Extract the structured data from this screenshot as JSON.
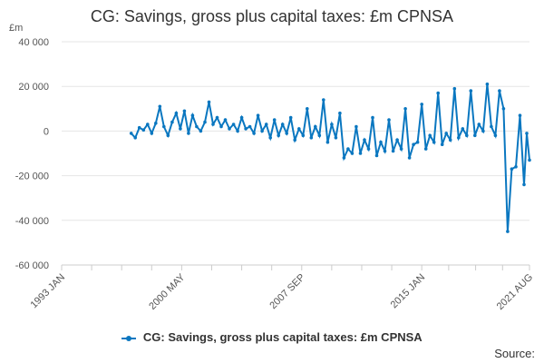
{
  "chart_data": {
    "type": "line",
    "title": "CG: Savings, gross plus capital taxes: £m CPNSA",
    "ylabel": "£m",
    "ylim": [
      -60000,
      40000
    ],
    "yticks": [
      40000,
      20000,
      0,
      -20000,
      -40000,
      -60000
    ],
    "ytick_labels": [
      "40 000",
      "20 000",
      "0",
      "-20 000",
      "-40 000",
      "-60 000"
    ],
    "xlim": [
      "1993-01",
      "2021-08"
    ],
    "xtick_labels": [
      {
        "label": "1993 JAN",
        "date": "1993-01"
      },
      {
        "label": "2000 MAY",
        "date": "2000-05"
      },
      {
        "label": "2007 SEP",
        "date": "2007-09"
      },
      {
        "label": "2015 JAN",
        "date": "2015-01"
      },
      {
        "label": "2021 AUG",
        "date": "2021-08"
      }
    ],
    "grid": "horizontal",
    "legend": "bottom",
    "color": "#0a77c0",
    "series": [
      {
        "name": "CG: Savings, gross plus capital taxes: £m CPNSA",
        "points": [
          [
            "1997-04",
            -1000
          ],
          [
            "1997-07",
            -3000
          ],
          [
            "1997-10",
            1500
          ],
          [
            "1998-01",
            500
          ],
          [
            "1998-04",
            3000
          ],
          [
            "1998-07",
            -1000
          ],
          [
            "1998-10",
            3500
          ],
          [
            "1999-01",
            11000
          ],
          [
            "1999-04",
            2000
          ],
          [
            "1999-07",
            -2000
          ],
          [
            "1999-10",
            4000
          ],
          [
            "2000-01",
            8000
          ],
          [
            "2000-04",
            1000
          ],
          [
            "2000-07",
            9000
          ],
          [
            "2000-10",
            -1000
          ],
          [
            "2001-01",
            7000
          ],
          [
            "2001-04",
            2000
          ],
          [
            "2001-07",
            0
          ],
          [
            "2001-10",
            4000
          ],
          [
            "2002-01",
            13000
          ],
          [
            "2002-04",
            3000
          ],
          [
            "2002-07",
            6000
          ],
          [
            "2002-10",
            2000
          ],
          [
            "2003-01",
            5000
          ],
          [
            "2003-04",
            1000
          ],
          [
            "2003-07",
            3000
          ],
          [
            "2003-10",
            0
          ],
          [
            "2004-01",
            6000
          ],
          [
            "2004-04",
            1000
          ],
          [
            "2004-07",
            2000
          ],
          [
            "2004-10",
            -1000
          ],
          [
            "2005-01",
            7000
          ],
          [
            "2005-04",
            0
          ],
          [
            "2005-07",
            3000
          ],
          [
            "2005-10",
            -3000
          ],
          [
            "2006-01",
            5000
          ],
          [
            "2006-04",
            -2000
          ],
          [
            "2006-07",
            3000
          ],
          [
            "2006-10",
            -1000
          ],
          [
            "2007-01",
            6000
          ],
          [
            "2007-04",
            -4000
          ],
          [
            "2007-07",
            1000
          ],
          [
            "2007-10",
            -2000
          ],
          [
            "2008-01",
            10000
          ],
          [
            "2008-04",
            -3000
          ],
          [
            "2008-07",
            2000
          ],
          [
            "2008-10",
            -2000
          ],
          [
            "2009-01",
            14000
          ],
          [
            "2009-04",
            -5000
          ],
          [
            "2009-07",
            3000
          ],
          [
            "2009-10",
            -3000
          ],
          [
            "2010-01",
            8000
          ],
          [
            "2010-04",
            -12000
          ],
          [
            "2010-07",
            -8000
          ],
          [
            "2010-10",
            -10000
          ],
          [
            "2011-01",
            2000
          ],
          [
            "2011-04",
            -10000
          ],
          [
            "2011-07",
            -4000
          ],
          [
            "2011-10",
            -8000
          ],
          [
            "2012-01",
            6000
          ],
          [
            "2012-04",
            -11000
          ],
          [
            "2012-07",
            -5000
          ],
          [
            "2012-10",
            -9000
          ],
          [
            "2013-01",
            5000
          ],
          [
            "2013-04",
            -9000
          ],
          [
            "2013-07",
            -4000
          ],
          [
            "2013-10",
            -8000
          ],
          [
            "2014-01",
            10000
          ],
          [
            "2014-04",
            -12000
          ],
          [
            "2014-07",
            -6000
          ],
          [
            "2014-10",
            -5000
          ],
          [
            "2015-01",
            12000
          ],
          [
            "2015-04",
            -8000
          ],
          [
            "2015-07",
            -2000
          ],
          [
            "2015-10",
            -5000
          ],
          [
            "2016-01",
            17000
          ],
          [
            "2016-04",
            -6000
          ],
          [
            "2016-07",
            -1000
          ],
          [
            "2016-10",
            -4000
          ],
          [
            "2017-01",
            19000
          ],
          [
            "2017-04",
            -3000
          ],
          [
            "2017-07",
            1000
          ],
          [
            "2017-10",
            -2000
          ],
          [
            "2018-01",
            18000
          ],
          [
            "2018-04",
            -2000
          ],
          [
            "2018-07",
            3000
          ],
          [
            "2018-10",
            0
          ],
          [
            "2019-01",
            21000
          ],
          [
            "2019-04",
            2000
          ],
          [
            "2019-07",
            -2000
          ],
          [
            "2019-10",
            18000
          ],
          [
            "2020-01",
            10000
          ],
          [
            "2020-04",
            -45000
          ],
          [
            "2020-07",
            -17000
          ],
          [
            "2020-10",
            -16000
          ],
          [
            "2021-01",
            7000
          ],
          [
            "2021-04",
            -24000
          ],
          [
            "2021-06",
            -1000
          ],
          [
            "2021-08",
            -13000
          ]
        ]
      }
    ]
  },
  "source_label": "Source:"
}
